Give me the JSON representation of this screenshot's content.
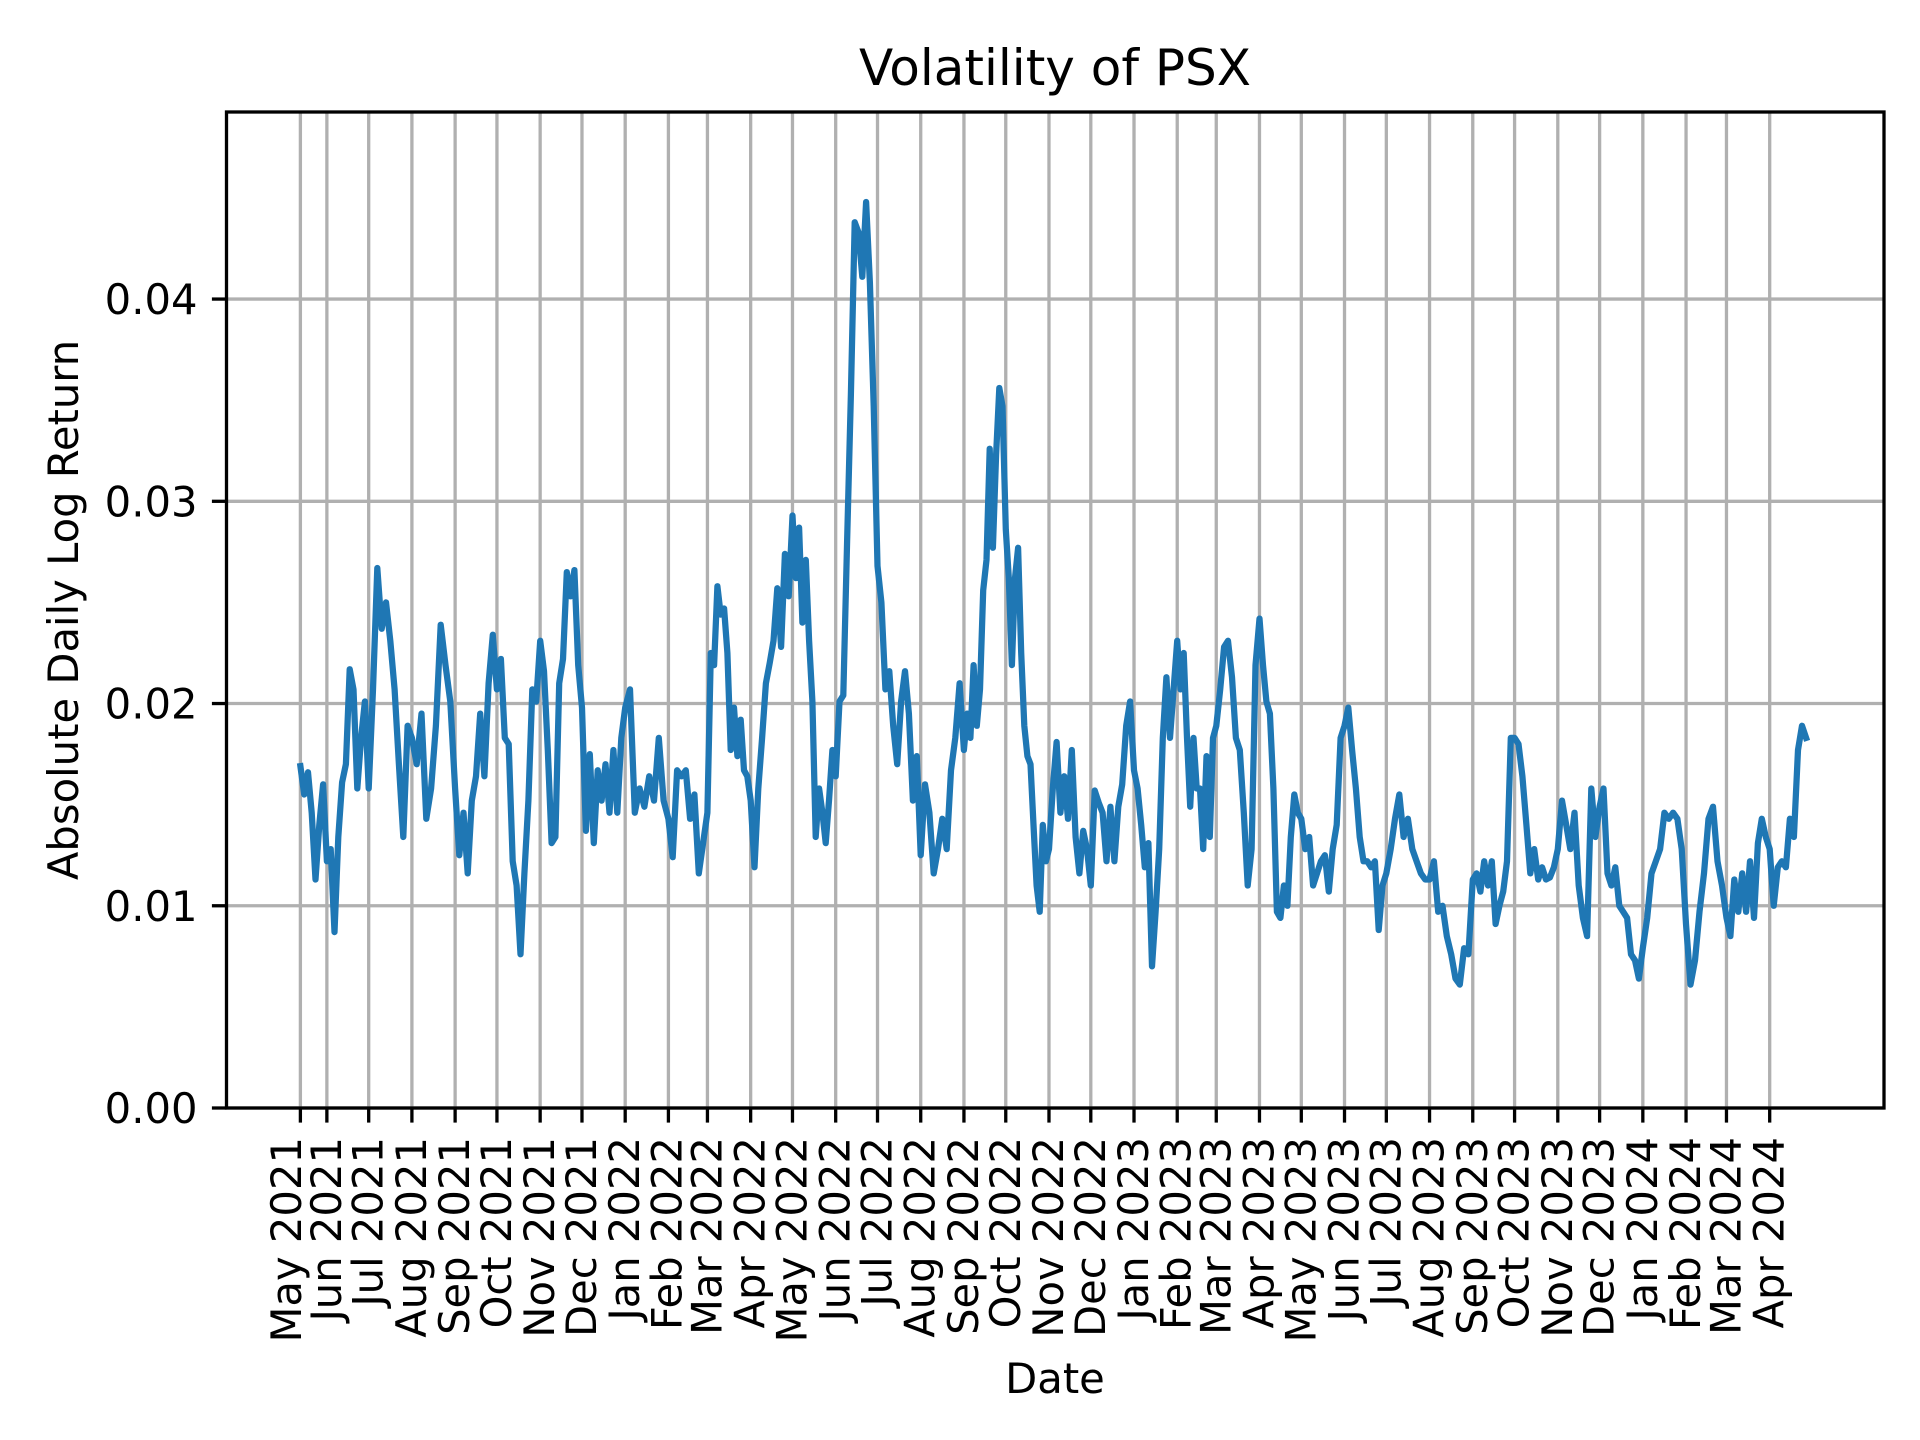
{
  "chart_data": {
    "type": "line",
    "title": "Volatility of PSX",
    "xlabel": "Date",
    "ylabel": "Absolute Daily Log Return",
    "xlim": [
      "2021-03-21",
      "2024-06-22"
    ],
    "ylim": [
      0,
      0.04925
    ],
    "grid": true,
    "line_color": "#1f77b4",
    "grid_color": "#b0b0b0",
    "yticks": [
      {
        "value": 0,
        "label": "0.00"
      },
      {
        "value": 0.01,
        "label": "0.01"
      },
      {
        "value": 0.02,
        "label": "0.02"
      },
      {
        "value": 0.03,
        "label": "0.03"
      },
      {
        "value": 0.04,
        "label": "0.04"
      }
    ],
    "xticks": [
      {
        "date": "2021-05-13",
        "label": "May 2021"
      },
      {
        "date": "2021-06-01",
        "label": "Jun 2021"
      },
      {
        "date": "2021-07-01",
        "label": "Jul 2021"
      },
      {
        "date": "2021-08-01",
        "label": "Aug 2021"
      },
      {
        "date": "2021-09-01",
        "label": "Sep 2021"
      },
      {
        "date": "2021-10-01",
        "label": "Oct 2021"
      },
      {
        "date": "2021-11-01",
        "label": "Nov 2021"
      },
      {
        "date": "2021-12-01",
        "label": "Dec 2021"
      },
      {
        "date": "2022-01-01",
        "label": "Jan 2022"
      },
      {
        "date": "2022-02-01",
        "label": "Feb 2022"
      },
      {
        "date": "2022-03-01",
        "label": "Mar 2022"
      },
      {
        "date": "2022-04-01",
        "label": "Apr 2022"
      },
      {
        "date": "2022-05-01",
        "label": "May 2022"
      },
      {
        "date": "2022-06-01",
        "label": "Jun 2022"
      },
      {
        "date": "2022-07-01",
        "label": "Jul 2022"
      },
      {
        "date": "2022-08-01",
        "label": "Aug 2022"
      },
      {
        "date": "2022-09-01",
        "label": "Sep 2022"
      },
      {
        "date": "2022-10-01",
        "label": "Oct 2022"
      },
      {
        "date": "2022-11-01",
        "label": "Nov 2022"
      },
      {
        "date": "2022-12-01",
        "label": "Dec 2022"
      },
      {
        "date": "2023-01-01",
        "label": "Jan 2023"
      },
      {
        "date": "2023-02-01",
        "label": "Feb 2023"
      },
      {
        "date": "2023-03-01",
        "label": "Mar 2023"
      },
      {
        "date": "2023-04-01",
        "label": "Apr 2023"
      },
      {
        "date": "2023-05-01",
        "label": "May 2023"
      },
      {
        "date": "2023-06-01",
        "label": "Jun 2023"
      },
      {
        "date": "2023-07-01",
        "label": "Jul 2023"
      },
      {
        "date": "2023-08-01",
        "label": "Aug 2023"
      },
      {
        "date": "2023-09-01",
        "label": "Sep 2023"
      },
      {
        "date": "2023-10-01",
        "label": "Oct 2023"
      },
      {
        "date": "2023-11-01",
        "label": "Nov 2023"
      },
      {
        "date": "2023-12-01",
        "label": "Dec 2023"
      },
      {
        "date": "2024-01-01",
        "label": "Jan 2024"
      },
      {
        "date": "2024-02-01",
        "label": "Feb 2024"
      },
      {
        "date": "2024-03-01",
        "label": "Mar 2024"
      },
      {
        "date": "2024-04-01",
        "label": "Apr 2024"
      }
    ],
    "start_date": "2021-05-13",
    "end_date": "2024-04-29",
    "series_by_month": [
      {
        "month": "2021-05",
        "values": [
          0.0169,
          0.0155,
          0.0166,
          0.0146,
          0.0113,
          0.014,
          0.016
        ]
      },
      {
        "month": "2021-06",
        "values": [
          0.0122,
          0.0128,
          0.0087,
          0.0134,
          0.0161,
          0.017,
          0.0217,
          0.0207,
          0.0158,
          0.0183,
          0.0201
        ]
      },
      {
        "month": "2021-07",
        "values": [
          0.0158,
          0.0207,
          0.0267,
          0.0237,
          0.025,
          0.0231,
          0.0207,
          0.017,
          0.0134,
          0.0189
        ]
      },
      {
        "month": "2021-08",
        "values": [
          0.0183,
          0.017,
          0.0195,
          0.0143,
          0.0158,
          0.0189,
          0.0239,
          0.0219,
          0.0201
        ]
      },
      {
        "month": "2021-09",
        "values": [
          0.0158,
          0.0125,
          0.0146,
          0.0116,
          0.0152,
          0.0164,
          0.0195,
          0.0164,
          0.021,
          0.0234
        ]
      },
      {
        "month": "2021-10",
        "values": [
          0.0207,
          0.0222,
          0.0183,
          0.018,
          0.0122,
          0.011,
          0.0076,
          0.0116,
          0.0152,
          0.0207,
          0.0201
        ]
      },
      {
        "month": "2021-11",
        "values": [
          0.0231,
          0.0216,
          0.0177,
          0.0131,
          0.0134,
          0.021,
          0.0222,
          0.0265,
          0.0253,
          0.0266,
          0.0219
        ]
      },
      {
        "month": "2021-12",
        "values": [
          0.0198,
          0.0137,
          0.0175,
          0.0131,
          0.0167,
          0.0152,
          0.017,
          0.0146,
          0.0177,
          0.0146,
          0.0183
        ]
      },
      {
        "month": "2022-01",
        "values": [
          0.0198,
          0.0207,
          0.0146,
          0.0158,
          0.0149,
          0.0164,
          0.0152,
          0.0183,
          0.0152
        ]
      },
      {
        "month": "2022-02",
        "values": [
          0.0143,
          0.0124,
          0.0167,
          0.0164,
          0.0167,
          0.0143,
          0.0155,
          0.0116,
          0.0131
        ]
      },
      {
        "month": "2022-03",
        "values": [
          0.0146,
          0.0225,
          0.0219,
          0.0258,
          0.0244,
          0.0247,
          0.0225,
          0.0177,
          0.0198,
          0.0174,
          0.0192,
          0.0167,
          0.0164
        ]
      },
      {
        "month": "2022-04",
        "values": [
          0.0152,
          0.0119,
          0.0158,
          0.0183,
          0.021,
          0.022,
          0.0231,
          0.0257,
          0.0228,
          0.0274,
          0.0253
        ]
      },
      {
        "month": "2022-05",
        "values": [
          0.0293,
          0.0262,
          0.0287,
          0.024,
          0.0271,
          0.0231,
          0.0201,
          0.0134,
          0.0158,
          0.0146,
          0.0131,
          0.0152,
          0.0177
        ]
      },
      {
        "month": "2022-06",
        "values": [
          0.0164,
          0.0201,
          0.0204,
          0.028,
          0.0353,
          0.0438,
          0.0433,
          0.0411,
          0.0448,
          0.0408,
          0.0347
        ]
      },
      {
        "month": "2022-07",
        "values": [
          0.0268,
          0.025,
          0.0207,
          0.0216,
          0.0189,
          0.017,
          0.0201,
          0.0216,
          0.0195,
          0.0152,
          0.0174
        ]
      },
      {
        "month": "2022-08",
        "values": [
          0.0125,
          0.016,
          0.0146,
          0.0116,
          0.0128,
          0.0143,
          0.0128,
          0.0167,
          0.0183,
          0.021
        ]
      },
      {
        "month": "2022-09",
        "values": [
          0.0177,
          0.0195,
          0.0183,
          0.0219,
          0.0189,
          0.0207,
          0.0256,
          0.0271,
          0.0326,
          0.0277,
          0.0323,
          0.0356,
          0.0347
        ]
      },
      {
        "month": "2022-10",
        "values": [
          0.0286,
          0.0262,
          0.0219,
          0.0262,
          0.0277,
          0.0225,
          0.0189,
          0.0174,
          0.017,
          0.014,
          0.011,
          0.0097,
          0.014,
          0.0122
        ]
      },
      {
        "month": "2022-11",
        "values": [
          0.0128,
          0.0158,
          0.0181,
          0.0146,
          0.0164,
          0.0143,
          0.0177,
          0.0134,
          0.0116,
          0.0137,
          0.0128
        ]
      },
      {
        "month": "2022-12",
        "values": [
          0.011,
          0.0157,
          0.0151,
          0.0146,
          0.0122,
          0.0149,
          0.0122,
          0.0149,
          0.016,
          0.0189,
          0.0201
        ]
      },
      {
        "month": "2023-01",
        "values": [
          0.0167,
          0.0158,
          0.014,
          0.0119,
          0.0131,
          0.007,
          0.0097,
          0.0128,
          0.0183,
          0.0213,
          0.0183,
          0.0207
        ]
      },
      {
        "month": "2023-02",
        "values": [
          0.0231,
          0.0207,
          0.0225,
          0.0183,
          0.0149,
          0.0183,
          0.0158,
          0.0158,
          0.0128,
          0.0174,
          0.0134,
          0.0183
        ]
      },
      {
        "month": "2023-03",
        "values": [
          0.0189,
          0.0207,
          0.0228,
          0.0231,
          0.0213,
          0.0183,
          0.0177,
          0.0146,
          0.011,
          0.0128,
          0.0219
        ]
      },
      {
        "month": "2023-04",
        "values": [
          0.0242,
          0.0219,
          0.0201,
          0.0195,
          0.0158,
          0.0097,
          0.0094,
          0.011,
          0.01,
          0.0134,
          0.0155,
          0.0146
        ]
      },
      {
        "month": "2023-05",
        "values": [
          0.0143,
          0.0128,
          0.0134,
          0.011,
          0.0116,
          0.0122,
          0.0125,
          0.0107,
          0.0128,
          0.014,
          0.0183
        ]
      },
      {
        "month": "2023-06",
        "values": [
          0.0189,
          0.0198,
          0.0177,
          0.0158,
          0.0134,
          0.0122,
          0.0122,
          0.0119,
          0.0122,
          0.0088,
          0.011
        ]
      },
      {
        "month": "2023-07",
        "values": [
          0.0116,
          0.0128,
          0.0143,
          0.0155,
          0.0134,
          0.0143,
          0.0128,
          0.0122,
          0.0116,
          0.0113
        ]
      },
      {
        "month": "2023-08",
        "values": [
          0.0113,
          0.0122,
          0.0097,
          0.01,
          0.0085,
          0.0076,
          0.0064,
          0.0061,
          0.0079,
          0.0076
        ]
      },
      {
        "month": "2023-09",
        "values": [
          0.0113,
          0.0116,
          0.0107,
          0.0122,
          0.011,
          0.0122,
          0.0091,
          0.01,
          0.0107,
          0.0122,
          0.0183
        ]
      },
      {
        "month": "2023-10",
        "values": [
          0.0183,
          0.018,
          0.0164,
          0.014,
          0.0116,
          0.0128,
          0.0113,
          0.0119,
          0.0113,
          0.0114,
          0.0119
        ]
      },
      {
        "month": "2023-11",
        "values": [
          0.0128,
          0.0152,
          0.014,
          0.0128,
          0.0146,
          0.011,
          0.0094,
          0.0085,
          0.0158,
          0.0134
        ]
      },
      {
        "month": "2023-12",
        "values": [
          0.0149,
          0.0158,
          0.0116,
          0.011,
          0.0119,
          0.01,
          0.0097,
          0.0094,
          0.0076,
          0.0073,
          0.0064
        ]
      },
      {
        "month": "2024-01",
        "values": [
          0.0079,
          0.0094,
          0.0116,
          0.0122,
          0.0128,
          0.0146,
          0.0143,
          0.0146,
          0.0143,
          0.0128
        ]
      },
      {
        "month": "2024-02",
        "values": [
          0.0091,
          0.0061,
          0.0073,
          0.0097,
          0.0116,
          0.0143,
          0.0149,
          0.0122,
          0.011
        ]
      },
      {
        "month": "2024-03",
        "values": [
          0.0094,
          0.0085,
          0.0113,
          0.0097,
          0.0116,
          0.0097,
          0.0122,
          0.0094,
          0.0131,
          0.0143,
          0.0134
        ]
      },
      {
        "month": "2024-04",
        "values": [
          0.0128,
          0.01,
          0.0119,
          0.0122,
          0.0119,
          0.0143,
          0.0134,
          0.0177,
          0.0189,
          0.0183
        ]
      }
    ]
  }
}
